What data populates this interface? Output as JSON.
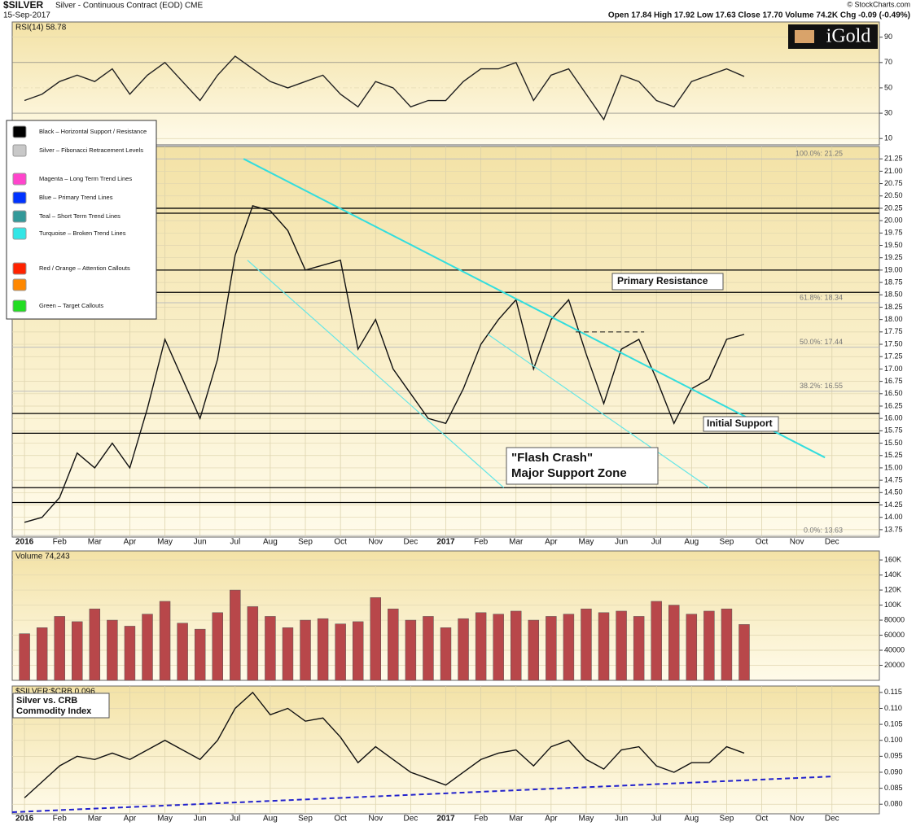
{
  "header": {
    "symbol": "$SILVER",
    "description": "Silver - Continuous Contract (EOD) CME",
    "date": "15-Sep-2017",
    "quote": "Open 17.84 High 17.92 Low 17.63 Close 17.70 Volume 74.2K Chg -0.09 (-0.49%)",
    "credit": "© StockCharts.com",
    "logo": "iGold"
  },
  "chart_data": [
    {
      "type": "line",
      "label": "RSI(14) 58.78",
      "color": "#222222",
      "x": [
        0,
        0.5,
        1,
        1.5,
        2,
        2.5,
        3,
        3.5,
        4,
        4.5,
        5,
        5.5,
        6,
        6.5,
        7,
        7.5,
        8,
        8.5,
        9,
        9.5,
        10,
        10.5,
        11,
        11.5,
        12,
        12.5,
        13,
        13.5,
        14,
        14.5,
        15,
        15.5,
        16,
        16.5,
        17,
        17.5,
        18,
        18.5,
        19,
        19.5,
        20,
        20.5
      ],
      "values": [
        40,
        45,
        55,
        60,
        55,
        65,
        45,
        60,
        70,
        55,
        40,
        60,
        75,
        65,
        55,
        50,
        55,
        60,
        45,
        35,
        55,
        50,
        35,
        40,
        40,
        55,
        65,
        65,
        70,
        40,
        60,
        65,
        45,
        25,
        60,
        55,
        40,
        35,
        55,
        60,
        65,
        59
      ],
      "xlim": [
        -0.35,
        24.35
      ],
      "ylim": [
        5,
        102
      ],
      "yticks": [
        10,
        30,
        50,
        70,
        90
      ]
    },
    {
      "type": "line",
      "color": "#111111",
      "x": [
        0,
        0.5,
        1,
        1.5,
        2,
        2.5,
        3,
        3.5,
        4,
        4.5,
        5,
        5.5,
        6,
        6.5,
        7,
        7.5,
        8,
        8.5,
        9,
        9.5,
        10,
        10.5,
        11,
        11.5,
        12,
        12.5,
        13,
        13.5,
        14,
        14.5,
        15,
        15.5,
        16,
        16.5,
        17,
        17.5,
        18,
        18.5,
        19,
        19.5,
        20,
        20.5
      ],
      "values": [
        13.9,
        14.0,
        14.4,
        15.3,
        15.0,
        15.5,
        15.0,
        16.2,
        17.6,
        16.8,
        16.0,
        17.2,
        19.3,
        20.3,
        20.2,
        19.8,
        19.0,
        19.1,
        19.2,
        17.4,
        18.0,
        17.0,
        16.5,
        16.0,
        15.9,
        16.6,
        17.5,
        18.0,
        18.4,
        17.0,
        18.0,
        18.4,
        17.3,
        16.3,
        17.4,
        17.6,
        16.8,
        15.9,
        16.6,
        16.8,
        17.6,
        17.7
      ],
      "xlim": [
        -0.35,
        24.35
      ],
      "ylim": [
        13.6,
        21.5
      ],
      "yticks": [
        13.75,
        {
          "value": 14,
          "label": "14.00"
        },
        14.25,
        {
          "value": 14.5,
          "label": "14.50"
        },
        14.75,
        {
          "value": 15,
          "label": "15.00"
        },
        15.25,
        {
          "value": 15.5,
          "label": "15.50"
        },
        15.75,
        {
          "value": 16,
          "label": "16.00"
        },
        16.25,
        {
          "value": 16.5,
          "label": "16.50"
        },
        16.75,
        {
          "value": 17,
          "label": "17.00"
        },
        17.25,
        {
          "value": 17.5,
          "label": "17.50"
        },
        17.75,
        {
          "value": 18,
          "label": "18.00"
        },
        18.25,
        {
          "value": 18.5,
          "label": "18.50"
        },
        18.75,
        {
          "value": 19,
          "label": "19.00"
        },
        19.25,
        {
          "value": 19.5,
          "label": "19.50"
        },
        19.75,
        {
          "value": 20,
          "label": "20.00"
        },
        20.25,
        {
          "value": 20.5,
          "label": "20.50"
        },
        20.75,
        {
          "value": 21,
          "label": "21.00"
        },
        21.25
      ],
      "xticks": [
        {
          "value": 0,
          "label": "2016"
        },
        {
          "value": 1,
          "label": "Feb"
        },
        {
          "value": 2,
          "label": "Mar"
        },
        {
          "value": 3,
          "label": "Apr"
        },
        {
          "value": 4,
          "label": "May"
        },
        {
          "value": 5,
          "label": "Jun"
        },
        {
          "value": 6,
          "label": "Jul"
        },
        {
          "value": 7,
          "label": "Aug"
        },
        {
          "value": 8,
          "label": "Sep"
        },
        {
          "value": 9,
          "label": "Oct"
        },
        {
          "value": 10,
          "label": "Nov"
        },
        {
          "value": 11,
          "label": "Dec"
        },
        {
          "value": 12,
          "label": "2017"
        },
        {
          "value": 13,
          "label": "Feb"
        },
        {
          "value": 14,
          "label": "Mar"
        },
        {
          "value": 15,
          "label": "Apr"
        },
        {
          "value": 16,
          "label": "May"
        },
        {
          "value": 17,
          "label": "Jun"
        },
        {
          "value": 18,
          "label": "Jul"
        },
        {
          "value": 19,
          "label": "Aug"
        },
        {
          "value": 20,
          "label": "Sep"
        },
        {
          "value": 21,
          "label": "Oct"
        },
        {
          "value": 22,
          "label": "Nov"
        },
        {
          "value": 23,
          "label": "Dec"
        }
      ],
      "hlines": [
        20.25,
        20.15,
        19.0,
        18.55,
        16.1,
        15.7,
        14.6,
        14.3
      ],
      "fib_levels": [
        {
          "value": 21.25,
          "label": "100.0%: 21.25"
        },
        {
          "value": 18.34,
          "label": "61.8%: 18.34"
        },
        {
          "value": 17.44,
          "label": "50.0%: 17.44"
        },
        {
          "value": 16.55,
          "label": "38.2%: 16.55"
        },
        {
          "value": 13.63,
          "label": "0.0%: 13.63"
        }
      ],
      "trend_lines": [
        {
          "color": "#33dddd",
          "width": 2,
          "x": [
            6.24,
            22.8
          ],
          "y": [
            21.25,
            15.21
          ]
        },
        {
          "color": "#66e6e6",
          "width": 1.2,
          "x": [
            6.35,
            13.65
          ],
          "y": [
            19.2,
            14.6
          ]
        },
        {
          "color": "#66e6e6",
          "width": 1.2,
          "x": [
            13.2,
            19.5
          ],
          "y": [
            17.7,
            14.6
          ]
        },
        {
          "color": "#111111",
          "width": 1,
          "dash": true,
          "x": [
            15.7,
            17.65
          ],
          "y": [
            17.75,
            17.75
          ]
        }
      ],
      "legend_items": [
        {
          "name": "Black – Horizontal Support / Resistance",
          "color": "#000000"
        },
        {
          "name": "Silver – Fibonacci Retracement Levels",
          "color": "#c8c8c8"
        },
        {
          "name": "Magenta – Long Term Trend Lines",
          "color": "#ff44cc"
        },
        {
          "name": "Blue – Primary Trend Lines",
          "color": "#0033ff"
        },
        {
          "name": "Teal – Short Term Trend Lines",
          "color": "#339999"
        },
        {
          "name": "Turquoise – Broken Trend Lines",
          "color": "#33e6e6"
        },
        {
          "name": "Red / Orange – Attention Callouts",
          "color": "#ff2200"
        },
        {
          "name": "",
          "color": "#ff8800"
        },
        {
          "name": "Green – Target Callouts",
          "color": "#22dd22"
        }
      ],
      "annotations": [
        "Primary Resistance",
        "Initial Support",
        "\"Flash Crash\"",
        "Major Support Zone"
      ]
    },
    {
      "type": "bar",
      "label": "Volume 74,243",
      "color": "#b8474a",
      "x": [
        0,
        0.5,
        1,
        1.5,
        2,
        2.5,
        3,
        3.5,
        4,
        4.5,
        5,
        5.5,
        6,
        6.5,
        7,
        7.5,
        8,
        8.5,
        9,
        9.5,
        10,
        10.5,
        11,
        11.5,
        12,
        12.5,
        13,
        13.5,
        14,
        14.5,
        15,
        15.5,
        16,
        16.5,
        17,
        17.5,
        18,
        18.5,
        19,
        19.5,
        20,
        20.5
      ],
      "values": [
        62000,
        70000,
        85000,
        78000,
        95000,
        80000,
        72000,
        88000,
        105000,
        76000,
        68000,
        90000,
        120000,
        98000,
        85000,
        70000,
        80000,
        82000,
        75000,
        78000,
        110000,
        95000,
        80000,
        85000,
        70000,
        82000,
        90000,
        88000,
        92000,
        80000,
        85000,
        88000,
        95000,
        90000,
        92000,
        85000,
        105000,
        100000,
        88000,
        92000,
        95000,
        74243
      ],
      "xlim": [
        -0.35,
        24.35
      ],
      "ylim": [
        0,
        172000
      ],
      "yticks": [
        20000,
        40000,
        60000,
        80000,
        {
          "value": 100000,
          "label": "100K"
        },
        {
          "value": 120000,
          "label": "120K"
        },
        {
          "value": 140000,
          "label": "140K"
        },
        {
          "value": 160000,
          "label": "160K"
        }
      ]
    },
    {
      "type": "line",
      "label": "$SILVER:$CRB 0.096",
      "color": "#111111",
      "x": [
        0,
        0.5,
        1,
        1.5,
        2,
        2.5,
        3,
        3.5,
        4,
        4.5,
        5,
        5.5,
        6,
        6.5,
        7,
        7.5,
        8,
        8.5,
        9,
        9.5,
        10,
        10.5,
        11,
        11.5,
        12,
        12.5,
        13,
        13.5,
        14,
        14.5,
        15,
        15.5,
        16,
        16.5,
        17,
        17.5,
        18,
        18.5,
        19,
        19.5,
        20,
        20.5
      ],
      "values": [
        0.082,
        0.087,
        0.092,
        0.095,
        0.094,
        0.096,
        0.094,
        0.097,
        0.1,
        0.097,
        0.094,
        0.1,
        0.11,
        0.115,
        0.108,
        0.11,
        0.106,
        0.107,
        0.101,
        0.093,
        0.098,
        0.094,
        0.09,
        0.088,
        0.086,
        0.09,
        0.094,
        0.096,
        0.097,
        0.092,
        0.098,
        0.1,
        0.094,
        0.091,
        0.097,
        0.098,
        0.092,
        0.09,
        0.093,
        0.093,
        0.098,
        0.096
      ],
      "xlim": [
        -0.35,
        24.35
      ],
      "ylim": [
        0.077,
        0.117
      ],
      "yticks": [
        {
          "value": 0.08,
          "label": "0.080"
        },
        0.085,
        {
          "value": 0.09,
          "label": "0.090"
        },
        0.095,
        {
          "value": 0.1,
          "label": "0.100"
        },
        0.105,
        {
          "value": 0.11,
          "label": "0.110"
        },
        0.115
      ],
      "xticks": [
        {
          "value": 0,
          "label": "2016"
        },
        {
          "value": 1,
          "label": "Feb"
        },
        {
          "value": 2,
          "label": "Mar"
        },
        {
          "value": 3,
          "label": "Apr"
        },
        {
          "value": 4,
          "label": "May"
        },
        {
          "value": 5,
          "label": "Jun"
        },
        {
          "value": 6,
          "label": "Jul"
        },
        {
          "value": 7,
          "label": "Aug"
        },
        {
          "value": 8,
          "label": "Sep"
        },
        {
          "value": 9,
          "label": "Oct"
        },
        {
          "value": 10,
          "label": "Nov"
        },
        {
          "value": 11,
          "label": "Dec"
        },
        {
          "value": 12,
          "label": "2017"
        },
        {
          "value": 13,
          "label": "Feb"
        },
        {
          "value": 14,
          "label": "Mar"
        },
        {
          "value": 15,
          "label": "Apr"
        },
        {
          "value": 16,
          "label": "May"
        },
        {
          "value": 17,
          "label": "Jun"
        },
        {
          "value": 18,
          "label": "Jul"
        },
        {
          "value": 19,
          "label": "Aug"
        },
        {
          "value": 20,
          "label": "Sep"
        },
        {
          "value": 21,
          "label": "Oct"
        },
        {
          "value": 22,
          "label": "Nov"
        },
        {
          "value": 23,
          "label": "Dec"
        }
      ],
      "trend_lines": [
        {
          "color": "#2222cc",
          "width": 2,
          "dash": true,
          "x": [
            -0.35,
            23.05
          ],
          "y": [
            0.0775,
            0.0887
          ]
        }
      ],
      "annotations": [
        "Silver vs. CRB",
        "Commodity Index"
      ]
    }
  ]
}
